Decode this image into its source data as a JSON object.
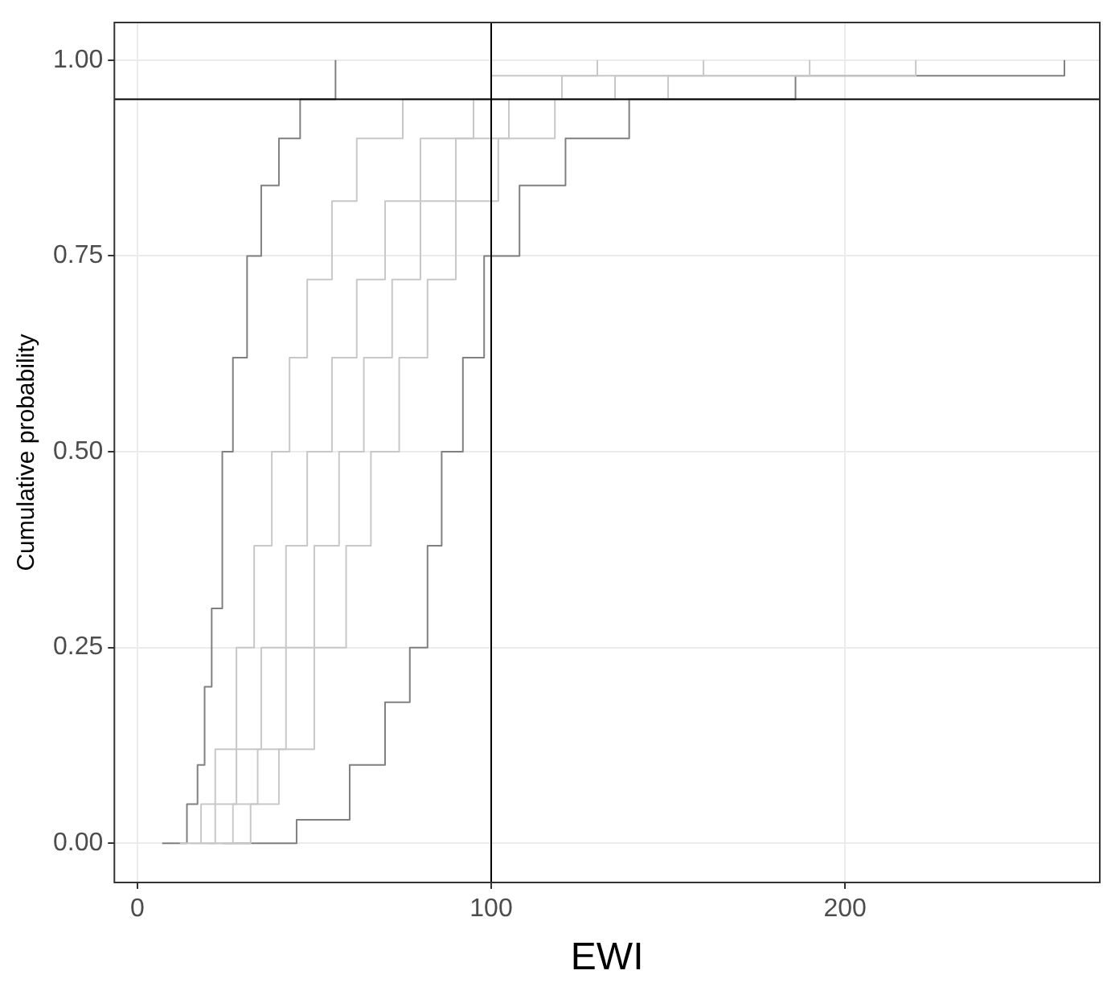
{
  "chart_data": {
    "type": "step",
    "xlabel": "EWI",
    "ylabel": "Cumulative probability",
    "xlim": [
      -6.5,
      272
    ],
    "ylim": [
      -0.05,
      1.048
    ],
    "xticks": [
      0,
      100,
      200
    ],
    "yticks": [
      {
        "value": 0,
        "label": "0.00"
      },
      {
        "value": 0.25,
        "label": "0.25"
      },
      {
        "value": 0.5,
        "label": "0.50"
      },
      {
        "value": 0.75,
        "label": "0.75"
      },
      {
        "value": 1,
        "label": "1.00"
      }
    ],
    "grid": true,
    "marker": "none",
    "line_style": "solid",
    "ref_lines": [
      {
        "axis": "x",
        "value": 100,
        "color": "#000000"
      },
      {
        "axis": "y",
        "value": 0.95,
        "color": "#000000"
      }
    ],
    "series": [
      {
        "color": "#c8c8c8",
        "x": [
          12,
          18,
          22,
          28,
          33,
          38,
          43,
          48,
          55,
          62,
          75,
          100,
          130
        ],
        "values": [
          0,
          0.05,
          0.12,
          0.25,
          0.38,
          0.5,
          0.62,
          0.72,
          0.82,
          0.9,
          0.95,
          0.98,
          1
        ]
      },
      {
        "color": "#c8c8c8",
        "x": [
          15,
          22,
          28,
          35,
          42,
          48,
          55,
          62,
          70,
          80,
          95,
          120,
          160
        ],
        "values": [
          0,
          0.05,
          0.12,
          0.25,
          0.38,
          0.5,
          0.62,
          0.72,
          0.82,
          0.9,
          0.95,
          0.98,
          1
        ]
      },
      {
        "color": "#c8c8c8",
        "x": [
          18,
          27,
          34,
          42,
          50,
          57,
          64,
          72,
          80,
          90,
          105,
          135,
          190
        ],
        "values": [
          0,
          0.05,
          0.12,
          0.25,
          0.38,
          0.5,
          0.62,
          0.72,
          0.82,
          0.9,
          0.95,
          0.98,
          1
        ]
      },
      {
        "color": "#c8c8c8",
        "x": [
          20,
          32,
          40,
          50,
          59,
          66,
          74,
          82,
          90,
          102,
          118,
          150,
          220
        ],
        "values": [
          0,
          0.05,
          0.12,
          0.25,
          0.38,
          0.5,
          0.62,
          0.72,
          0.82,
          0.9,
          0.95,
          0.98,
          1
        ]
      },
      {
        "color": "#808080",
        "x": [
          7,
          14,
          17,
          19,
          21,
          24,
          27,
          31,
          35,
          40,
          46,
          56
        ],
        "values": [
          0,
          0.05,
          0.1,
          0.2,
          0.3,
          0.5,
          0.62,
          0.75,
          0.84,
          0.9,
          0.95,
          1
        ]
      },
      {
        "color": "#808080",
        "x": [
          24,
          45,
          60,
          70,
          77,
          82,
          86,
          92,
          98,
          108,
          121,
          139,
          186,
          262
        ],
        "values": [
          0,
          0.03,
          0.1,
          0.18,
          0.25,
          0.38,
          0.5,
          0.62,
          0.75,
          0.84,
          0.9,
          0.95,
          0.98,
          1
        ]
      }
    ]
  }
}
